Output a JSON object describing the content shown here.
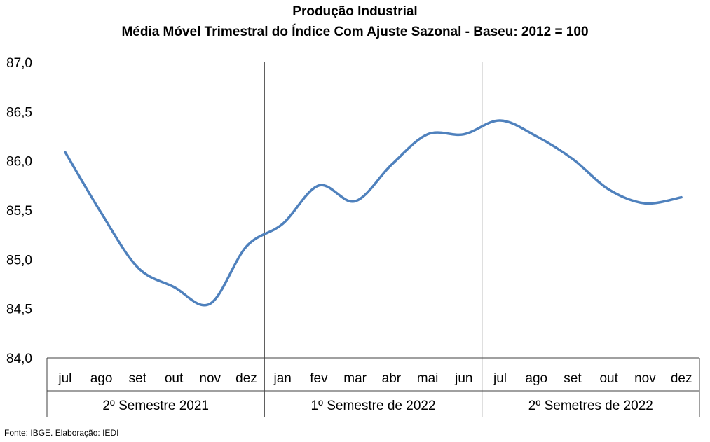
{
  "chart_data": {
    "type": "line",
    "title": "Produção Industrial",
    "subtitle": "Média Móvel Trimestral do Índice Com Ajuste Sazonal - Baseu: 2012 = 100",
    "categories": [
      "jul",
      "ago",
      "set",
      "out",
      "nov",
      "dez",
      "jan",
      "fev",
      "mar",
      "abr",
      "mai",
      "jun",
      "jul",
      "ago",
      "set",
      "out",
      "nov",
      "dez"
    ],
    "groups": [
      {
        "label": "2º Semestre 2021"
      },
      {
        "label": "1º Semestre de 2022"
      },
      {
        "label": "2º Semetres de 2022"
      }
    ],
    "series": [
      {
        "values": [
          86.09,
          85.47,
          84.92,
          84.72,
          84.55,
          85.13,
          85.36,
          85.75,
          85.59,
          85.96,
          86.27,
          86.27,
          86.41,
          86.25,
          86.02,
          85.71,
          85.57,
          85.63
        ]
      }
    ],
    "ylim": [
      84.0,
      87.0
    ],
    "yticks": [
      "84,0",
      "84,5",
      "85,0",
      "85,5",
      "86,0",
      "86,5",
      "87,0"
    ],
    "line_color": "#4f81bd",
    "grid": false
  },
  "source": "Fonte: IBGE. Elaboração: IEDI"
}
